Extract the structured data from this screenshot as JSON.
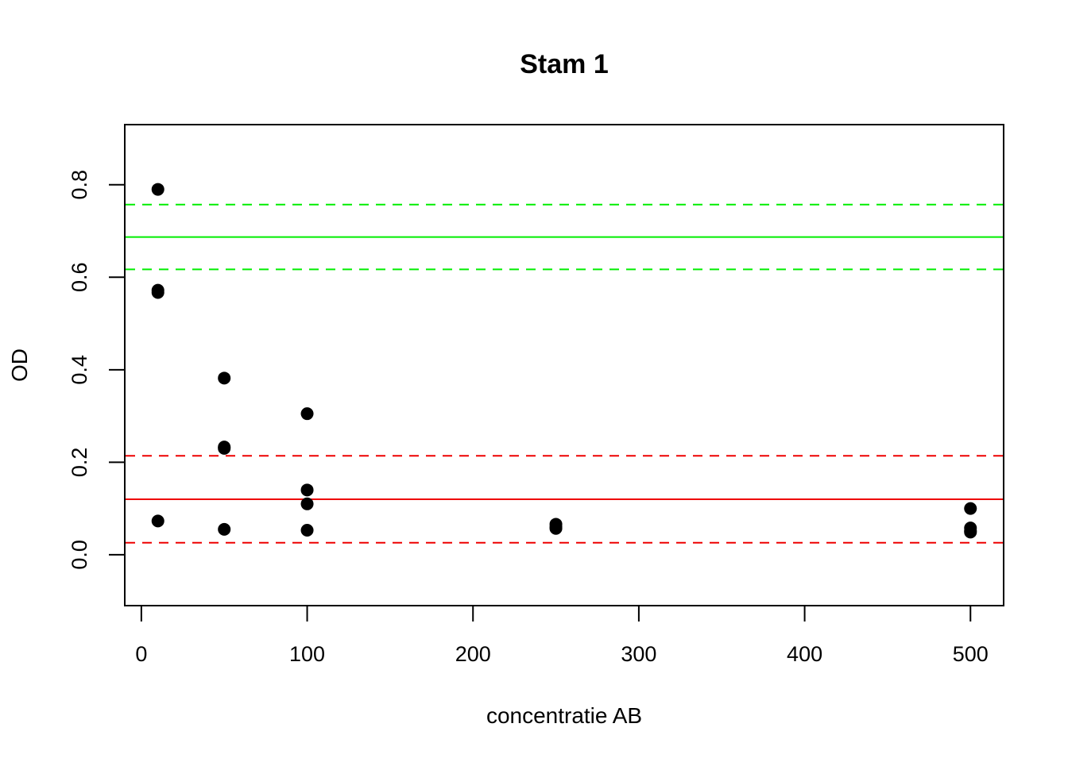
{
  "chart_data": {
    "type": "scatter",
    "title": "Stam 1",
    "xlabel": "concentratie AB",
    "ylabel": "OD",
    "xlim": [
      -10,
      520
    ],
    "ylim": [
      -0.11,
      0.93
    ],
    "xticks": [
      0,
      100,
      200,
      300,
      400,
      500
    ],
    "yticks": [
      0.0,
      0.2,
      0.4,
      0.6,
      0.8
    ],
    "xtick_labels": [
      "0",
      "100",
      "200",
      "300",
      "400",
      "500"
    ],
    "ytick_labels": [
      "0.0",
      "0.2",
      "0.4",
      "0.6",
      "0.8"
    ],
    "grid": false,
    "point_color": "#000000",
    "points": [
      {
        "x": 10,
        "y": 0.79
      },
      {
        "x": 10,
        "y": 0.572
      },
      {
        "x": 10,
        "y": 0.567
      },
      {
        "x": 10,
        "y": 0.073
      },
      {
        "x": 50,
        "y": 0.382
      },
      {
        "x": 50,
        "y": 0.233
      },
      {
        "x": 50,
        "y": 0.23
      },
      {
        "x": 50,
        "y": 0.055
      },
      {
        "x": 100,
        "y": 0.305
      },
      {
        "x": 100,
        "y": 0.14
      },
      {
        "x": 100,
        "y": 0.11
      },
      {
        "x": 100,
        "y": 0.053
      },
      {
        "x": 250,
        "y": 0.066
      },
      {
        "x": 250,
        "y": 0.06
      },
      {
        "x": 250,
        "y": 0.057
      },
      {
        "x": 500,
        "y": 0.1
      },
      {
        "x": 500,
        "y": 0.058
      },
      {
        "x": 500,
        "y": 0.052
      },
      {
        "x": 500,
        "y": 0.049
      }
    ],
    "hlines": [
      {
        "y": 0.757,
        "color": "#00ee00",
        "style": "dashed"
      },
      {
        "y": 0.687,
        "color": "#00ee00",
        "style": "solid"
      },
      {
        "y": 0.617,
        "color": "#00ee00",
        "style": "dashed"
      },
      {
        "y": 0.214,
        "color": "#ee0000",
        "style": "dashed"
      },
      {
        "y": 0.12,
        "color": "#ee0000",
        "style": "solid"
      },
      {
        "y": 0.026,
        "color": "#ee0000",
        "style": "dashed"
      }
    ]
  }
}
